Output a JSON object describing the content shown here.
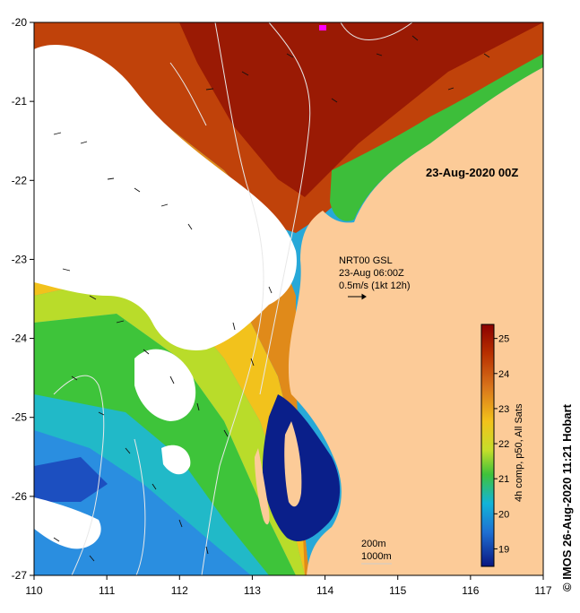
{
  "map": {
    "title": "23-Aug-2020 00Z",
    "credit": "© IMOS 26-Aug-2020 11:21 Hobart",
    "lon_ticks": [
      "110",
      "111",
      "112",
      "113",
      "114",
      "115",
      "116",
      "117"
    ],
    "lat_ticks": [
      "-20",
      "-21",
      "-22",
      "-23",
      "-24",
      "-25",
      "-26",
      "-27"
    ],
    "current_legend": {
      "line1": "NRT00 GSL",
      "line2": "23-Aug 06:00Z",
      "line3": "0.5m/s (1kt 12h)"
    },
    "isobath_legend": {
      "line1": "200m",
      "line2": "1000m"
    },
    "colorbar": {
      "caption": "4h comp, p50, All Sats",
      "ticks": [
        "19",
        "20",
        "21",
        "22",
        "23",
        "24",
        "25"
      ],
      "range": [
        18.5,
        25.4
      ]
    },
    "colors": {
      "land": "#fccb98",
      "cloud": "#ffffff",
      "isobath": "#dddddd"
    }
  },
  "chart_data": {
    "type": "heatmap",
    "xlim": [
      110,
      117
    ],
    "ylim": [
      -27,
      -20
    ],
    "value_range": [
      18.5,
      25.4
    ],
    "unit_caption": "4h comp, p50, All Sats"
  }
}
